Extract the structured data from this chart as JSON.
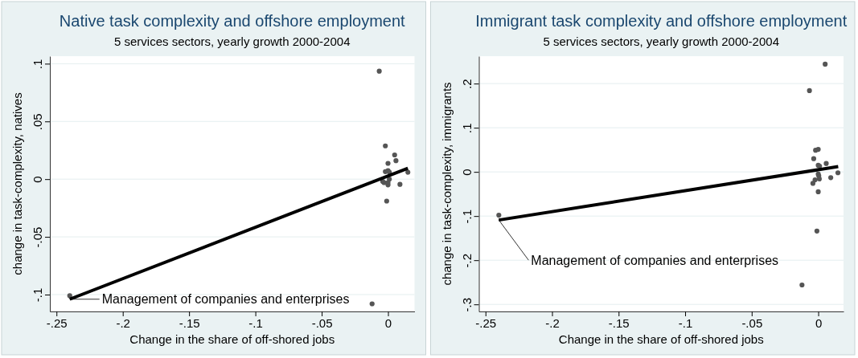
{
  "chart_data": [
    {
      "type": "scatter",
      "title": "Native task complexity and offshore employment",
      "subtitle": "5 services sectors, yearly growth 2000-2004",
      "xlabel": "Change in the share of off-shored jobs",
      "ylabel": "change in task-complexity, natives",
      "xlim": [
        -0.255,
        0.02
      ],
      "ylim": [
        -0.1146,
        0.1065
      ],
      "xticks": [
        {
          "value": -0.25,
          "label": "-.25"
        },
        {
          "value": -0.2,
          "label": "-.2"
        },
        {
          "value": -0.15,
          "label": "-.15"
        },
        {
          "value": -0.1,
          "label": "-.1"
        },
        {
          "value": -0.05,
          "label": "-.05"
        },
        0
      ],
      "yticks": [
        {
          "value": -0.1,
          "label": "-.1"
        },
        {
          "value": -0.05,
          "label": "-.05"
        },
        0,
        {
          "value": 0.05,
          "label": ".05"
        },
        {
          "value": 0.1,
          "label": ".1"
        }
      ],
      "grid": "y",
      "series": [
        {
          "marker": "circle",
          "color": "#555555",
          "x": [
            -0.0066,
            -0.002,
            0.005,
            0.006,
            0,
            -0.002,
            0,
            0.001,
            0.015,
            0.001,
            -0.004,
            -0.003,
            0,
            0,
            0.009,
            -0.001,
            -0.012,
            -0.24
          ],
          "values": [
            0.0935,
            0.0288,
            0.021,
            0.016,
            0.0137,
            0.0065,
            0.0074,
            0.006,
            0.006,
            0,
            -0.002,
            -0.003,
            -0.005,
            -0.003,
            -0.0045,
            -0.019,
            -0.108,
            -0.101
          ]
        },
        {
          "type": "line",
          "color": "#000000",
          "x": [
            -0.24,
            0.015
          ],
          "values": [
            -0.104,
            0.0095
          ]
        }
      ],
      "annotations": [
        {
          "text": "Management of companies and enterprises",
          "x": -0.24,
          "y": -0.104
        }
      ]
    },
    {
      "type": "scatter",
      "title": "Immigrant task complexity and offshore employment",
      "subtitle": "5 services sectors, yearly growth 2000-2004",
      "xlabel": "Change in the share of off-shored jobs",
      "ylabel": "change in task-complexity, immigrants",
      "xlim": [
        -0.255,
        0.019
      ],
      "ylim": [
        -0.316,
        0.262
      ],
      "xticks": [
        {
          "value": -0.25,
          "label": "-.25"
        },
        {
          "value": -0.2,
          "label": "-.2"
        },
        {
          "value": -0.15,
          "label": "-.15"
        },
        {
          "value": -0.1,
          "label": "-.1"
        },
        {
          "value": -0.05,
          "label": "-.05"
        },
        0
      ],
      "yticks": [
        {
          "value": -0.3,
          "label": "-.3"
        },
        {
          "value": -0.2,
          "label": "-.2"
        },
        {
          "value": -0.1,
          "label": "-.1"
        },
        0,
        {
          "value": 0.1,
          "label": ".1"
        },
        {
          "value": 0.2,
          "label": ".2"
        }
      ],
      "grid": "y",
      "series": [
        {
          "marker": "circle",
          "color": "#555555",
          "x": [
            0.0052,
            -0.0066,
            -0.002,
            0,
            -0.0034,
            0.006,
            0,
            0.001,
            0.0148,
            0,
            0.0004,
            -0.0024,
            0.0008,
            -0.004,
            0.0094,
            0,
            -0.001,
            -0.0122,
            -0.24
          ],
          "values": [
            0.244,
            0.184,
            0.049,
            0.051,
            0.03,
            0.019,
            0.015,
            0.013,
            -0.002,
            -0.005,
            -0.009,
            -0.018,
            -0.016,
            -0.026,
            -0.013,
            -0.045,
            -0.134,
            -0.256,
            -0.098
          ]
        },
        {
          "type": "line",
          "color": "#000000",
          "x": [
            -0.24,
            0.015
          ],
          "values": [
            -0.109,
            0.012
          ]
        }
      ],
      "annotations": [
        {
          "text": "Management of companies and enterprises",
          "x": -0.24,
          "y": -0.109
        }
      ]
    }
  ]
}
